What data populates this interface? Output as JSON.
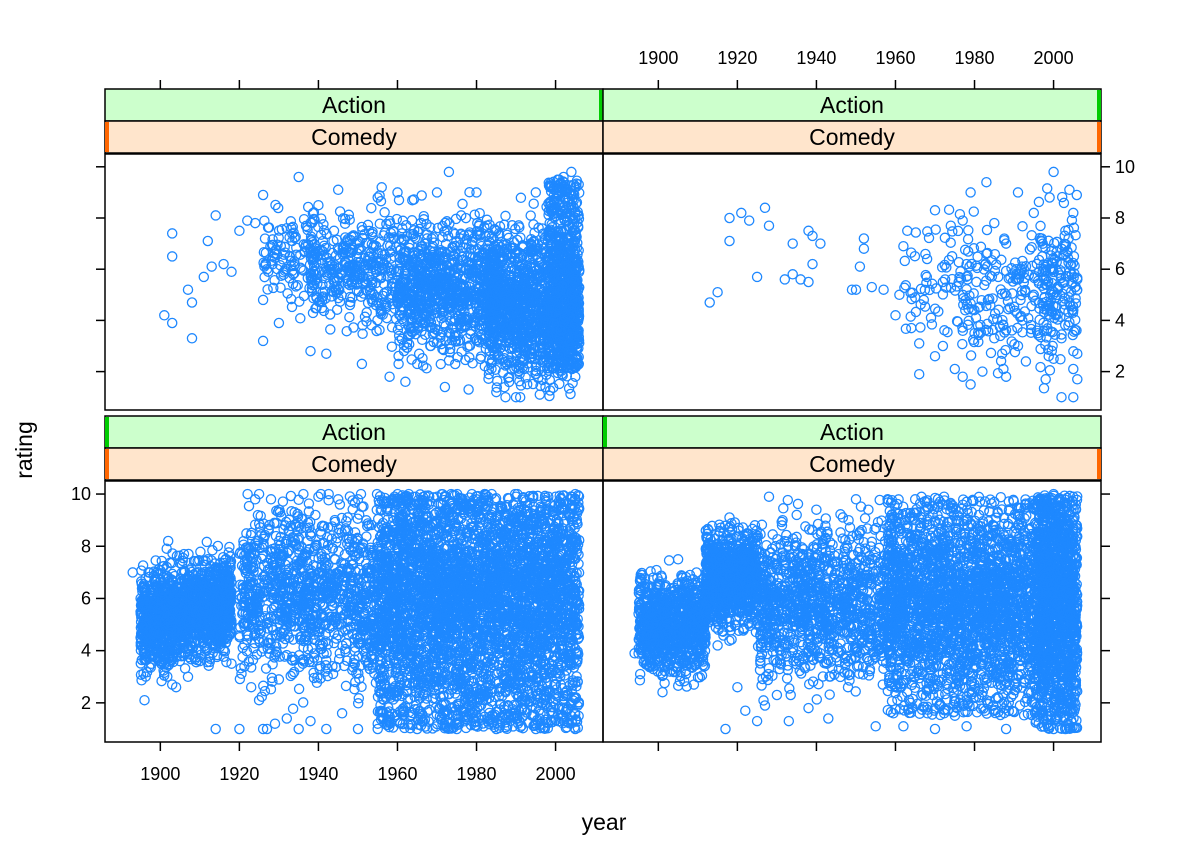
{
  "chart_data": {
    "type": "scatter",
    "title": "",
    "xlabel": "year",
    "ylabel": "rating",
    "xlim": [
      1886,
      2012
    ],
    "ylim": [
      0.5,
      10.5
    ],
    "x_ticks": [
      1900,
      1920,
      1940,
      1960,
      1980,
      2000
    ],
    "y_ticks": [
      2,
      4,
      6,
      8,
      10
    ],
    "layout": "2x2 panels",
    "marker": "open circle",
    "color": "#1E88FF",
    "strip_colors": {
      "first": "#CCFFCC",
      "second": "#FFE5CC"
    },
    "strip_marker_colors": {
      "first": "#00CC00",
      "second": "#FF6600"
    },
    "panels": [
      {
        "position": "bottom-left",
        "strips": [
          "Action",
          "Comedy"
        ],
        "density": "very dense",
        "points": [
          [
            1893,
            7.0
          ],
          [
            1895,
            6.0
          ],
          [
            1895,
            4.5
          ],
          [
            1896,
            2.1
          ],
          [
            1897,
            7.0
          ],
          [
            1898,
            5.5
          ],
          [
            1899,
            4.0
          ],
          [
            1900,
            6.5
          ],
          [
            1901,
            3.5
          ],
          [
            1902,
            8.2
          ],
          [
            1903,
            2.7
          ],
          [
            1904,
            2.6
          ],
          [
            1905,
            5.0
          ],
          [
            1906,
            7.7
          ],
          [
            1907,
            3.0
          ],
          [
            1908,
            6.6
          ],
          [
            1910,
            3.6
          ],
          [
            1911,
            6.0
          ],
          [
            1912,
            7.5
          ],
          [
            1914,
            1.0
          ],
          [
            1916,
            4.4
          ],
          [
            1918,
            3.5
          ],
          [
            1920,
            1.0
          ],
          [
            1922,
            5.0
          ],
          [
            1923,
            2.6
          ],
          [
            1924,
            9.8
          ],
          [
            1925,
            2.1
          ],
          [
            1926,
            1.0
          ],
          [
            1927,
            1.0
          ],
          [
            1928,
            9.8
          ],
          [
            1929,
            1.2
          ],
          [
            1930,
            2.9
          ],
          [
            1932,
            1.4
          ],
          [
            1934,
            9.3
          ],
          [
            1935,
            1.0
          ],
          [
            1938,
            1.3
          ],
          [
            1940,
            9.9
          ],
          [
            1942,
            1.0
          ],
          [
            1945,
            9.8
          ],
          [
            1946,
            1.6
          ],
          [
            1950,
            9.8
          ],
          [
            1950,
            1.0
          ],
          [
            1955,
            1.0
          ],
          [
            1960,
            9.7
          ],
          [
            1965,
            1.0
          ],
          [
            1970,
            9.9
          ],
          [
            1975,
            1.0
          ],
          [
            1980,
            9.8
          ],
          [
            1985,
            1.0
          ],
          [
            1990,
            9.9
          ],
          [
            1995,
            1.0
          ],
          [
            2000,
            9.9
          ],
          [
            2005,
            10.0
          ],
          [
            2005,
            1.0
          ]
        ]
      },
      {
        "position": "bottom-right",
        "strips": [
          "Action",
          "Comedy"
        ],
        "density": "dense",
        "points": [
          [
            1894,
            3.9
          ],
          [
            1896,
            6.9
          ],
          [
            1897,
            4.6
          ],
          [
            1899,
            6.2
          ],
          [
            1900,
            3.6
          ],
          [
            1902,
            4.5
          ],
          [
            1903,
            5.3
          ],
          [
            1904,
            3.9
          ],
          [
            1905,
            7.5
          ],
          [
            1907,
            3.1
          ],
          [
            1908,
            6.9
          ],
          [
            1909,
            2.7
          ],
          [
            1910,
            4.7
          ],
          [
            1912,
            8.6
          ],
          [
            1915,
            4.2
          ],
          [
            1917,
            1.0
          ],
          [
            1918,
            9.1
          ],
          [
            1920,
            2.6
          ],
          [
            1922,
            1.7
          ],
          [
            1923,
            5.6
          ],
          [
            1925,
            1.3
          ],
          [
            1927,
            1.9
          ],
          [
            1928,
            9.9
          ],
          [
            1930,
            2.3
          ],
          [
            1933,
            1.3
          ],
          [
            1935,
            9.2
          ],
          [
            1938,
            1.8
          ],
          [
            1940,
            9.4
          ],
          [
            1943,
            1.4
          ],
          [
            1948,
            2.6
          ],
          [
            1950,
            9.8
          ],
          [
            1955,
            1.1
          ],
          [
            1958,
            9.8
          ],
          [
            1960,
            2.9
          ],
          [
            1962,
            1.1
          ],
          [
            1965,
            9.8
          ],
          [
            1970,
            1.0
          ],
          [
            1972,
            9.6
          ],
          [
            1978,
            1.1
          ],
          [
            1985,
            9.7
          ],
          [
            1988,
            1.0
          ],
          [
            1995,
            9.6
          ],
          [
            2000,
            10.0
          ],
          [
            2000,
            1.0
          ],
          [
            2003,
            1.0
          ]
        ]
      },
      {
        "position": "top-left",
        "strips": [
          "Action",
          "Comedy"
        ],
        "density": "dense",
        "points": [
          [
            1901,
            4.2
          ],
          [
            1903,
            3.9
          ],
          [
            1903,
            7.4
          ],
          [
            1903,
            6.5
          ],
          [
            1907,
            5.2
          ],
          [
            1908,
            4.7
          ],
          [
            1908,
            3.3
          ],
          [
            1911,
            5.7
          ],
          [
            1912,
            7.1
          ],
          [
            1913,
            6.1
          ],
          [
            1914,
            8.1
          ],
          [
            1916,
            6.2
          ],
          [
            1918,
            5.9
          ],
          [
            1920,
            7.5
          ],
          [
            1922,
            7.9
          ],
          [
            1924,
            7.8
          ],
          [
            1926,
            8.9
          ],
          [
            1926,
            3.2
          ],
          [
            1926,
            4.8
          ],
          [
            1927,
            6.0
          ],
          [
            1930,
            3.9
          ],
          [
            1932,
            7.6
          ],
          [
            1935,
            9.6
          ],
          [
            1938,
            2.8
          ],
          [
            1940,
            8.5
          ],
          [
            1942,
            2.7
          ],
          [
            1945,
            9.1
          ],
          [
            1948,
            4.6
          ],
          [
            1951,
            2.3
          ],
          [
            1955,
            8.8
          ],
          [
            1956,
            9.2
          ],
          [
            1958,
            1.8
          ],
          [
            1960,
            9.0
          ],
          [
            1962,
            1.6
          ],
          [
            1965,
            2.3
          ],
          [
            1970,
            9.0
          ],
          [
            1972,
            1.4
          ],
          [
            1973,
            9.8
          ],
          [
            1978,
            1.3
          ],
          [
            1980,
            9.0
          ],
          [
            1985,
            1.2
          ],
          [
            1990,
            1.0
          ],
          [
            1995,
            9.0
          ],
          [
            1996,
            1.1
          ],
          [
            2002,
            9.6
          ],
          [
            2004,
            9.8
          ],
          [
            2005,
            1.8
          ]
        ]
      },
      {
        "position": "top-right",
        "strips": [
          "Action",
          "Comedy"
        ],
        "density": "sparse",
        "points": [
          [
            1913,
            4.7
          ],
          [
            1915,
            5.1
          ],
          [
            1918,
            7.1
          ],
          [
            1918,
            8.0
          ],
          [
            1921,
            8.2
          ],
          [
            1923,
            7.9
          ],
          [
            1925,
            5.7
          ],
          [
            1927,
            8.4
          ],
          [
            1928,
            7.7
          ],
          [
            1932,
            5.6
          ],
          [
            1934,
            7.0
          ],
          [
            1934,
            5.8
          ],
          [
            1936,
            5.6
          ],
          [
            1938,
            7.5
          ],
          [
            1938,
            5.5
          ],
          [
            1939,
            6.2
          ],
          [
            1939,
            7.3
          ],
          [
            1941,
            7.0
          ],
          [
            1949,
            5.2
          ],
          [
            1950,
            5.2
          ],
          [
            1951,
            6.1
          ],
          [
            1952,
            7.2
          ],
          [
            1952,
            6.8
          ],
          [
            1954,
            5.3
          ],
          [
            1957,
            5.2
          ],
          [
            1960,
            4.2
          ],
          [
            1961,
            5.0
          ],
          [
            1962,
            6.9
          ],
          [
            1963,
            7.5
          ],
          [
            1964,
            3.7
          ],
          [
            1965,
            4.9
          ],
          [
            1966,
            3.1
          ],
          [
            1966,
            1.9
          ],
          [
            1968,
            6.4
          ],
          [
            1969,
            4.1
          ],
          [
            1970,
            8.3
          ],
          [
            1970,
            2.6
          ],
          [
            1972,
            5.5
          ],
          [
            1972,
            3.0
          ],
          [
            1974,
            7.7
          ],
          [
            1975,
            2.1
          ],
          [
            1976,
            5.5
          ],
          [
            1977,
            1.8
          ],
          [
            1977,
            7.9
          ],
          [
            1978,
            6.2
          ],
          [
            1979,
            1.5
          ],
          [
            1979,
            9.0
          ],
          [
            1980,
            3.5
          ],
          [
            1981,
            4.5
          ],
          [
            1982,
            2.0
          ],
          [
            1983,
            6.6
          ],
          [
            1983,
            9.4
          ],
          [
            1985,
            3.3
          ],
          [
            1985,
            7.8
          ],
          [
            1986,
            5.7
          ],
          [
            1987,
            2.7
          ],
          [
            1988,
            1.8
          ],
          [
            1988,
            7.0
          ],
          [
            1989,
            4.5
          ],
          [
            1991,
            3.0
          ],
          [
            1991,
            9.0
          ],
          [
            1992,
            6.1
          ],
          [
            1993,
            2.4
          ],
          [
            1995,
            5.0
          ],
          [
            1995,
            8.2
          ],
          [
            1996,
            3.5
          ],
          [
            1997,
            7.2
          ],
          [
            1998,
            1.7
          ],
          [
            1999,
            4.5
          ],
          [
            1999,
            8.8
          ],
          [
            2000,
            2.5
          ],
          [
            2000,
            9.8
          ],
          [
            2001,
            6.5
          ],
          [
            2002,
            3.3
          ],
          [
            2002,
            1.0
          ],
          [
            2003,
            7.5
          ],
          [
            2004,
            9.1
          ],
          [
            2004,
            4.7
          ],
          [
            2005,
            1.0
          ],
          [
            2005,
            8.2
          ],
          [
            2005,
            2.1
          ],
          [
            2006,
            5.6
          ],
          [
            2006,
            2.7
          ],
          [
            2006,
            1.7
          ]
        ]
      }
    ]
  }
}
